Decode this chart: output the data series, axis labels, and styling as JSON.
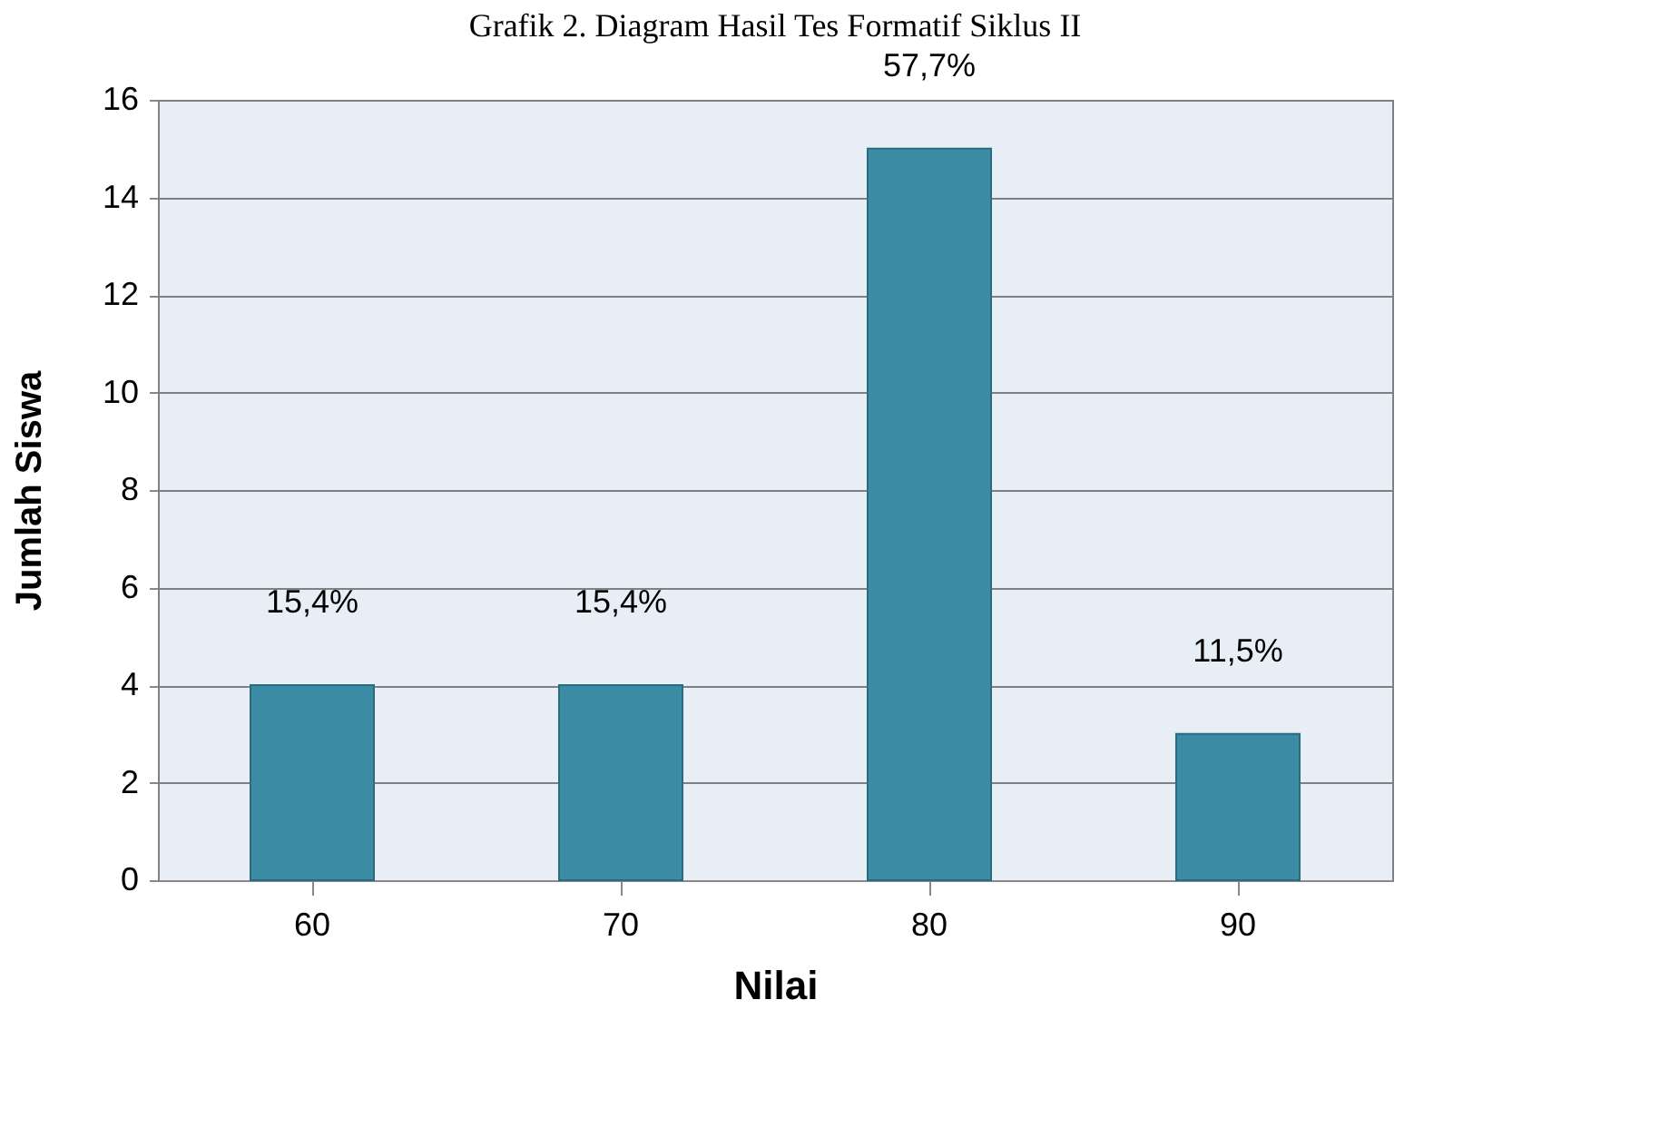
{
  "chart_data": {
    "type": "bar",
    "title": "Grafik 2. Diagram Hasil Tes Formatif Siklus II",
    "categories": [
      "60",
      "70",
      "80",
      "90"
    ],
    "values": [
      4,
      4,
      15,
      3
    ],
    "annotations": [
      {
        "text": "15,4%",
        "x": "60",
        "y": 4
      },
      {
        "text": "15,4%",
        "x": "70",
        "y": 4
      },
      {
        "text": "57,7%",
        "x": "80",
        "y": 15
      },
      {
        "text": "11,5%",
        "x": "90",
        "y": 3
      }
    ],
    "color": "#3c8ba4",
    "xlabel": "Nilai",
    "ylabel": "Jumlah Siswa",
    "ylim": [
      0,
      16
    ],
    "yticks": [
      0,
      2,
      4,
      6,
      8,
      10,
      12,
      14,
      16
    ],
    "grid": "y"
  }
}
